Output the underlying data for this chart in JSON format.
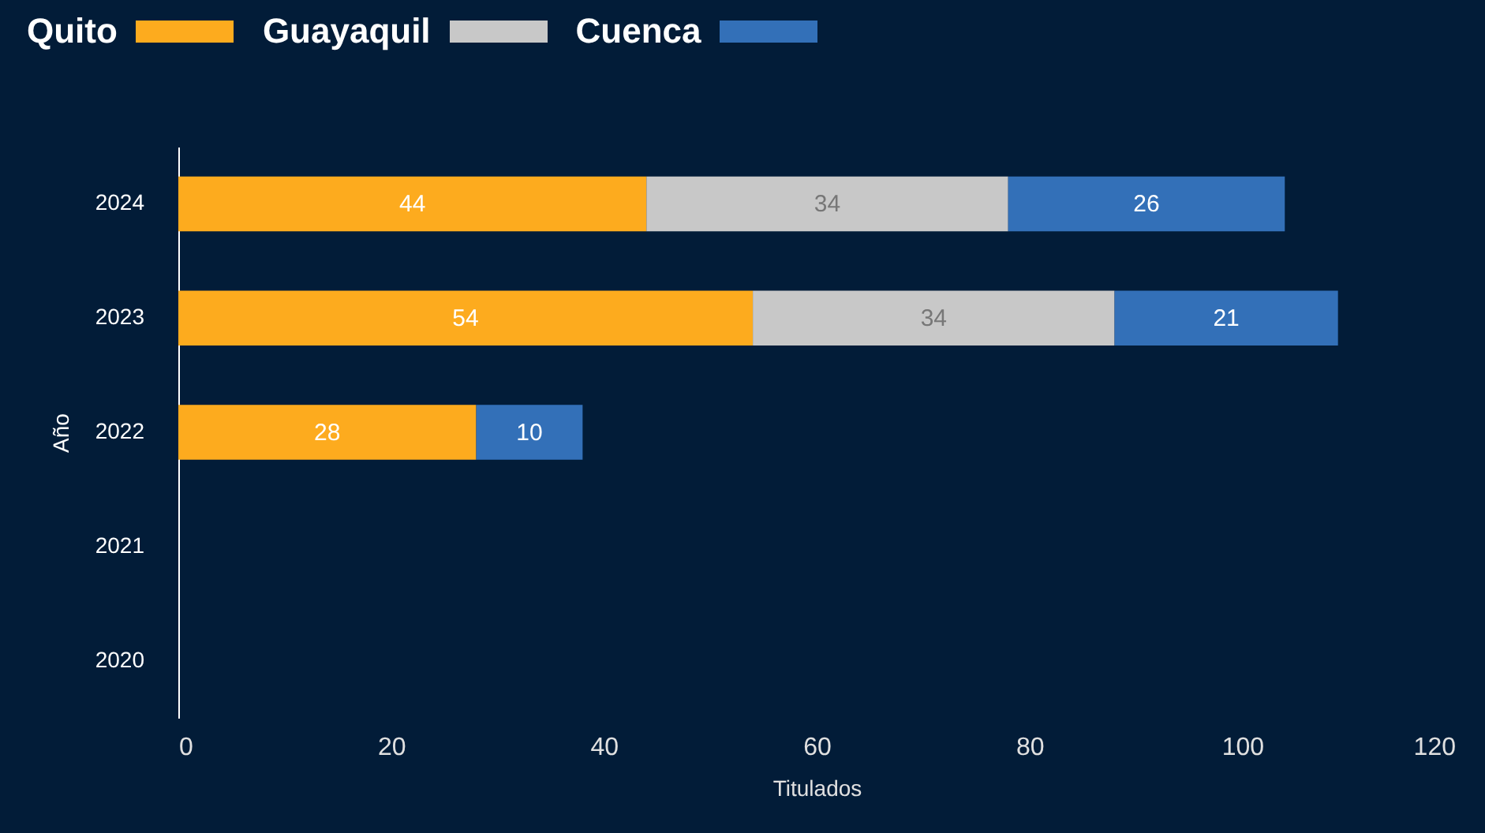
{
  "chart_data": {
    "type": "bar",
    "orientation": "horizontal",
    "stacked": true,
    "xlabel": "Titulados",
    "ylabel": "Año",
    "categories": [
      "2024",
      "2023",
      "2022",
      "2021",
      "2020"
    ],
    "series": [
      {
        "name": "Quito",
        "color": "#fdab1e",
        "values": [
          44,
          54,
          28,
          null,
          null
        ]
      },
      {
        "name": "Guayaquil",
        "color": "#c8c8c8",
        "values": [
          34,
          34,
          null,
          null,
          null
        ]
      },
      {
        "name": "Cuenca",
        "color": "#3370b8",
        "values": [
          26,
          21,
          10,
          null,
          null
        ]
      }
    ],
    "xlim": [
      0,
      120
    ],
    "xticks": [
      0,
      20,
      40,
      60,
      80,
      100,
      120
    ],
    "data_labels": true,
    "legend": "top left"
  }
}
